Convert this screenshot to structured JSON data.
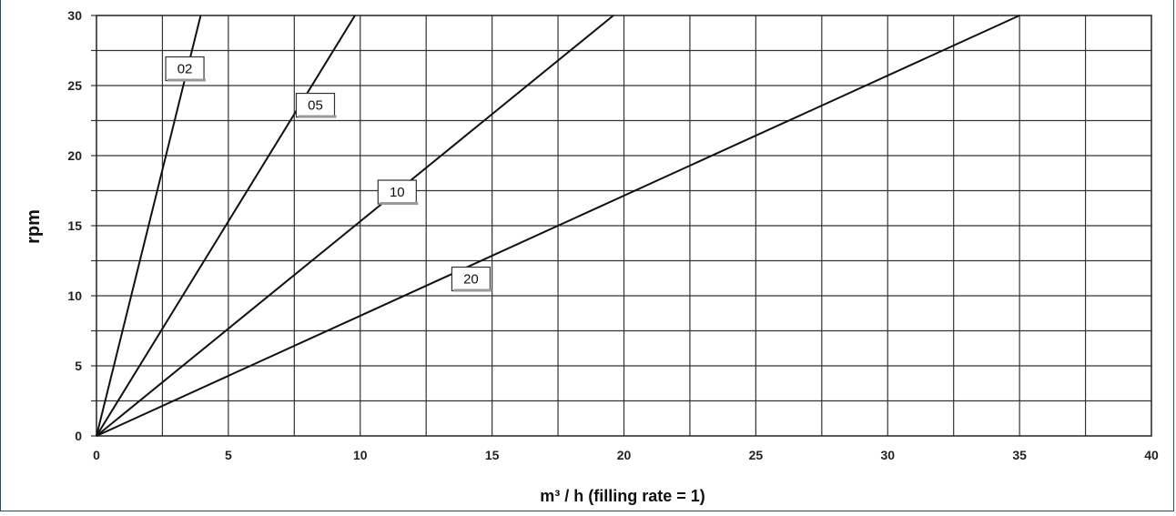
{
  "chart_data": {
    "type": "line",
    "title": "",
    "xlabel": "m³ / h (filling rate = 1)",
    "ylabel": "rpm",
    "xlim": [
      0,
      40
    ],
    "ylim": [
      0,
      30
    ],
    "x_ticks": [
      "0",
      "5",
      "10",
      "15",
      "20",
      "25",
      "30",
      "35",
      "40"
    ],
    "y_ticks": [
      "0",
      "5",
      "10",
      "15",
      "20",
      "25",
      "30"
    ],
    "grid": true,
    "series": [
      {
        "name": "02",
        "x": [
          0,
          3.95
        ],
        "y": [
          0,
          30
        ],
        "label_at": {
          "x": 3.35,
          "y": 26.2
        }
      },
      {
        "name": "05",
        "x": [
          0,
          9.8
        ],
        "y": [
          0,
          30
        ],
        "label_at": {
          "x": 8.3,
          "y": 23.6
        }
      },
      {
        "name": "10",
        "x": [
          0,
          19.6
        ],
        "y": [
          0,
          30
        ],
        "label_at": {
          "x": 11.4,
          "y": 17.4
        }
      },
      {
        "name": "20",
        "x": [
          0,
          35.0
        ],
        "y": [
          0,
          30
        ],
        "label_at": {
          "x": 14.2,
          "y": 11.2
        }
      }
    ]
  }
}
